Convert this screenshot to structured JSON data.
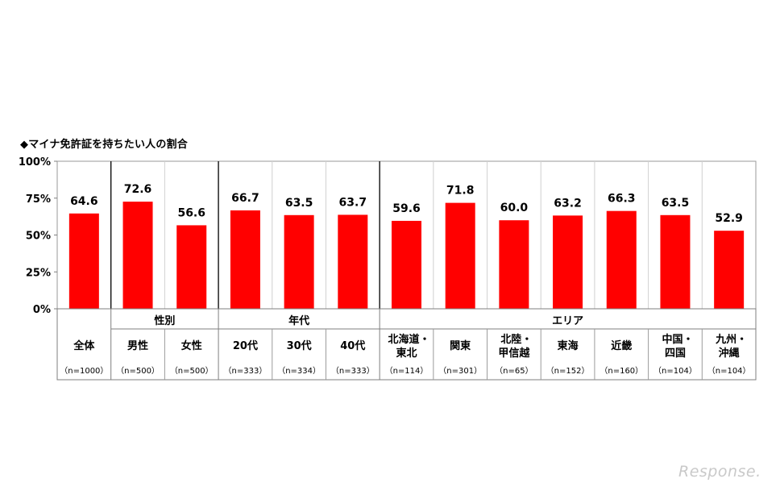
{
  "chart_data": {
    "type": "bar",
    "title": "◆マイナ免許証を持ちたい人の割合",
    "ylim": [
      0,
      100
    ],
    "yticks": [
      "100%",
      "75%",
      "50%",
      "25%",
      "0%"
    ],
    "ytick_values": [
      100,
      75,
      50,
      25,
      0
    ],
    "bar_color": "#ff0000",
    "groups": [
      {
        "label": "",
        "start": 0,
        "count": 1
      },
      {
        "label": "性別",
        "start": 1,
        "count": 2
      },
      {
        "label": "年代",
        "start": 3,
        "count": 3
      },
      {
        "label": "エリア",
        "start": 6,
        "count": 7
      }
    ],
    "categories": [
      {
        "label": [
          "全体"
        ],
        "n": "（n=1000）",
        "value": 64.6,
        "value_label": "64.6"
      },
      {
        "label": [
          "男性"
        ],
        "n": "（n=500）",
        "value": 72.6,
        "value_label": "72.6"
      },
      {
        "label": [
          "女性"
        ],
        "n": "（n=500）",
        "value": 56.6,
        "value_label": "56.6"
      },
      {
        "label": [
          "20代"
        ],
        "n": "（n=333）",
        "value": 66.7,
        "value_label": "66.7"
      },
      {
        "label": [
          "30代"
        ],
        "n": "（n=334）",
        "value": 63.5,
        "value_label": "63.5"
      },
      {
        "label": [
          "40代"
        ],
        "n": "（n=333）",
        "value": 63.7,
        "value_label": "63.7"
      },
      {
        "label": [
          "北海道・",
          "東北"
        ],
        "n": "（n=114）",
        "value": 59.6,
        "value_label": "59.6"
      },
      {
        "label": [
          "関東"
        ],
        "n": "（n=301）",
        "value": 71.8,
        "value_label": "71.8"
      },
      {
        "label": [
          "北陸・",
          "甲信越"
        ],
        "n": "（n=65）",
        "value": 60.0,
        "value_label": "60.0"
      },
      {
        "label": [
          "東海"
        ],
        "n": "（n=152）",
        "value": 63.2,
        "value_label": "63.2"
      },
      {
        "label": [
          "近畿"
        ],
        "n": "（n=160）",
        "value": 66.3,
        "value_label": "66.3"
      },
      {
        "label": [
          "中国・",
          "四国"
        ],
        "n": "（n=104）",
        "value": 63.5,
        "value_label": "63.5"
      },
      {
        "label": [
          "九州・",
          "沖縄"
        ],
        "n": "（n=104）",
        "value": 52.9,
        "value_label": "52.9"
      }
    ]
  },
  "watermark": "Response."
}
